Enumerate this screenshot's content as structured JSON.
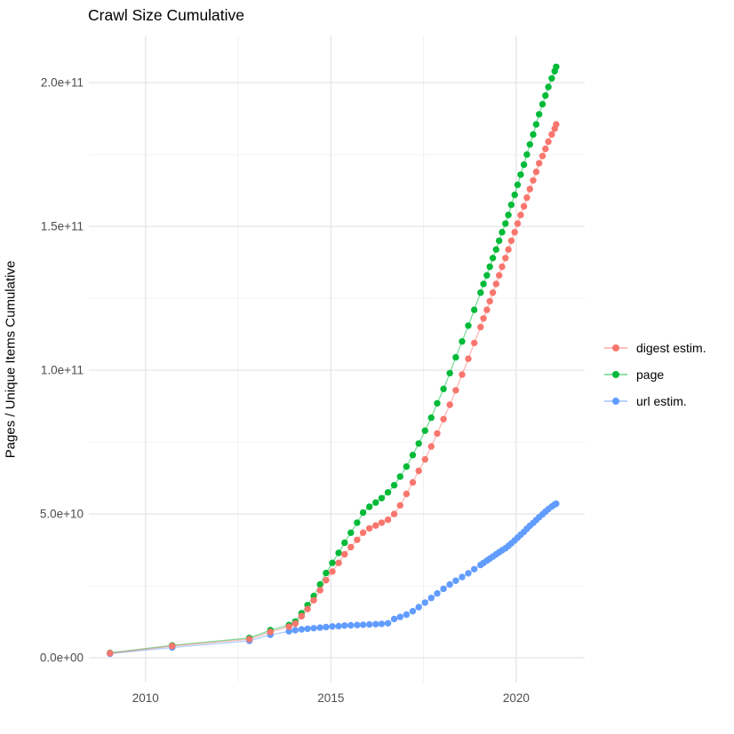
{
  "chart_data": {
    "type": "scatter",
    "title": "Crawl Size Cumulative",
    "xlabel": "",
    "ylabel": "Pages / Unique Items Cumulative",
    "unit_note": "y values stored in billions; 200 billions = 2.0e+11",
    "grid": true,
    "legend_position": "right",
    "x_years": [
      2009.04,
      2010.72,
      2012.8,
      2013.37,
      2013.87,
      2014.04,
      2014.21,
      2014.37,
      2014.54,
      2014.71,
      2014.87,
      2015.04,
      2015.21,
      2015.37,
      2015.54,
      2015.71,
      2015.87,
      2016.04,
      2016.21,
      2016.37,
      2016.54,
      2016.71,
      2016.87,
      2017.04,
      2017.21,
      2017.37,
      2017.54,
      2017.71,
      2017.87,
      2018.04,
      2018.21,
      2018.37,
      2018.54,
      2018.71,
      2018.87,
      2019.04,
      2019.12,
      2019.21,
      2019.29,
      2019.37,
      2019.46,
      2019.54,
      2019.62,
      2019.71,
      2019.79,
      2019.87,
      2019.96,
      2020.04,
      2020.12,
      2020.21,
      2020.29,
      2020.37,
      2020.46,
      2020.54,
      2020.62,
      2020.71,
      2020.79,
      2020.87,
      2020.96,
      2021.04,
      2021.08
    ],
    "series": [
      {
        "name": "digest estim.",
        "color": "#F8766D",
        "values_billions": [
          1.6,
          4.1,
          6.5,
          9.0,
          10.8,
          11.9,
          14.5,
          17.0,
          20.0,
          23.5,
          27.0,
          30.0,
          33.0,
          36.0,
          38.5,
          41.0,
          43.5,
          45.0,
          46.0,
          47.0,
          48.0,
          50.0,
          53.0,
          57.0,
          61.0,
          65.0,
          69.0,
          73.5,
          78.0,
          83.0,
          88.0,
          93.0,
          98.5,
          104.0,
          109.5,
          115.0,
          118.0,
          121.0,
          124.0,
          127.0,
          130.0,
          133.0,
          136.0,
          139.0,
          142.0,
          145.0,
          148.0,
          151.0,
          154.0,
          157.0,
          160.0,
          163.0,
          166.0,
          169.0,
          172.0,
          174.5,
          177.0,
          179.5,
          182.0,
          184.0,
          185.5
        ]
      },
      {
        "name": "page",
        "color": "#00BA38",
        "values_billions": [
          1.7,
          4.3,
          6.9,
          9.6,
          11.4,
          12.6,
          15.5,
          18.3,
          21.5,
          25.5,
          29.5,
          33.0,
          36.5,
          40.0,
          43.5,
          47.0,
          50.5,
          52.5,
          54.0,
          55.5,
          57.5,
          60.0,
          63.0,
          66.5,
          70.5,
          74.5,
          79.0,
          83.5,
          88.5,
          93.5,
          99.0,
          104.5,
          110.0,
          115.5,
          121.0,
          127.0,
          130.0,
          133.0,
          136.0,
          139.0,
          142.0,
          145.0,
          148.0,
          151.0,
          154.0,
          157.5,
          161.0,
          164.5,
          168.0,
          171.5,
          175.0,
          178.5,
          182.0,
          185.5,
          189.0,
          192.5,
          195.5,
          198.5,
          201.5,
          204.0,
          205.5
        ]
      },
      {
        "name": "url estim.",
        "color": "#619CFF",
        "values_billions": [
          1.4,
          3.6,
          5.9,
          8.0,
          9.2,
          9.6,
          9.9,
          10.1,
          10.3,
          10.5,
          10.7,
          10.9,
          11.0,
          11.2,
          11.3,
          11.4,
          11.5,
          11.6,
          11.7,
          11.8,
          12.0,
          13.5,
          14.2,
          15.0,
          16.2,
          17.6,
          19.2,
          20.8,
          22.4,
          24.0,
          25.5,
          26.8,
          28.1,
          29.4,
          30.8,
          32.3,
          33.0,
          33.8,
          34.5,
          35.2,
          36.0,
          36.7,
          37.4,
          38.1,
          38.9,
          39.8,
          40.8,
          41.8,
          42.8,
          43.8,
          44.9,
          45.9,
          46.9,
          47.9,
          48.9,
          49.9,
          50.8,
          51.7,
          52.6,
          53.3,
          53.6
        ]
      }
    ],
    "xticks": {
      "major": [
        2010,
        2015,
        2020
      ],
      "minor": [
        2012.5,
        2017.5
      ],
      "labels": [
        "2010",
        "2015",
        "2020"
      ]
    },
    "yticks": {
      "major_billions": [
        0,
        50,
        100,
        150,
        200
      ],
      "minor_billions": [
        25,
        75,
        125,
        175
      ],
      "labels": [
        "0.0e+00",
        "5.0e+10",
        "1.0e+11",
        "1.5e+11",
        "2.0e+11"
      ]
    },
    "xlim": [
      2008.47,
      2021.85
    ],
    "ylim_billions": [
      -8.6,
      216.4
    ],
    "colors": {
      "grid_major": "#E5E5E5",
      "grid_minor": "#F0F0F0",
      "tick_label": "#4D4D4D",
      "background": "#FFFFFF"
    }
  }
}
